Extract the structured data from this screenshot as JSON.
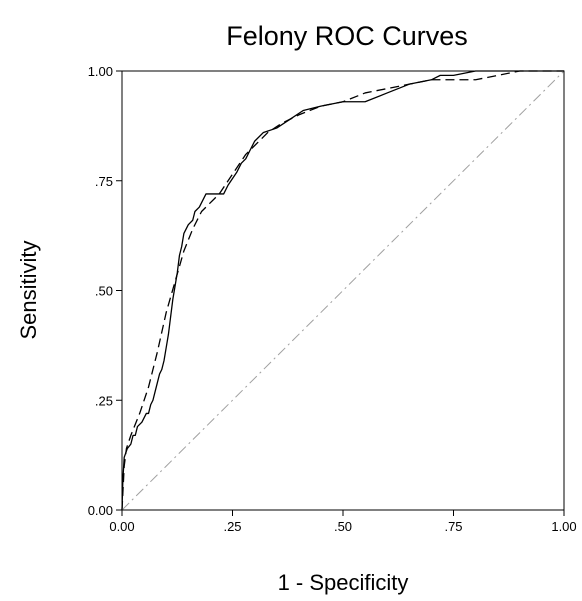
{
  "chart_data": {
    "type": "line",
    "title": "Felony ROC Curves",
    "xlabel": "1 - Specificity",
    "ylabel": "Sensitivity",
    "xlim": [
      0,
      1
    ],
    "ylim": [
      0,
      1
    ],
    "x_ticks": [
      {
        "value": 0,
        "label": "0.00"
      },
      {
        "value": 0.25,
        "label": ".25"
      },
      {
        "value": 0.5,
        "label": ".50"
      },
      {
        "value": 0.75,
        "label": ".75"
      },
      {
        "value": 1,
        "label": "1.00"
      }
    ],
    "y_ticks": [
      {
        "value": 0,
        "label": "0.00"
      },
      {
        "value": 0.25,
        "label": ".25"
      },
      {
        "value": 0.5,
        "label": ".50"
      },
      {
        "value": 0.75,
        "label": ".75"
      },
      {
        "value": 1,
        "label": "1.00"
      }
    ],
    "grid": false,
    "legend": "none",
    "series": [
      {
        "style": "solid",
        "color": "#000000",
        "points": [
          [
            0,
            0
          ],
          [
            0.002,
            0.07
          ],
          [
            0.005,
            0.12
          ],
          [
            0.012,
            0.14
          ],
          [
            0.02,
            0.15
          ],
          [
            0.025,
            0.17
          ],
          [
            0.03,
            0.17
          ],
          [
            0.035,
            0.19
          ],
          [
            0.045,
            0.2
          ],
          [
            0.05,
            0.21
          ],
          [
            0.055,
            0.22
          ],
          [
            0.06,
            0.22
          ],
          [
            0.065,
            0.24
          ],
          [
            0.07,
            0.25
          ],
          [
            0.075,
            0.27
          ],
          [
            0.08,
            0.29
          ],
          [
            0.085,
            0.31
          ],
          [
            0.09,
            0.32
          ],
          [
            0.095,
            0.34
          ],
          [
            0.1,
            0.37
          ],
          [
            0.105,
            0.4
          ],
          [
            0.11,
            0.44
          ],
          [
            0.115,
            0.48
          ],
          [
            0.12,
            0.51
          ],
          [
            0.125,
            0.54
          ],
          [
            0.13,
            0.58
          ],
          [
            0.135,
            0.6
          ],
          [
            0.14,
            0.63
          ],
          [
            0.15,
            0.65
          ],
          [
            0.16,
            0.66
          ],
          [
            0.165,
            0.68
          ],
          [
            0.175,
            0.69
          ],
          [
            0.18,
            0.7
          ],
          [
            0.19,
            0.72
          ],
          [
            0.21,
            0.72
          ],
          [
            0.23,
            0.72
          ],
          [
            0.24,
            0.74
          ],
          [
            0.26,
            0.77
          ],
          [
            0.27,
            0.79
          ],
          [
            0.28,
            0.8
          ],
          [
            0.29,
            0.82
          ],
          [
            0.3,
            0.84
          ],
          [
            0.32,
            0.86
          ],
          [
            0.35,
            0.87
          ],
          [
            0.38,
            0.89
          ],
          [
            0.41,
            0.91
          ],
          [
            0.45,
            0.92
          ],
          [
            0.5,
            0.93
          ],
          [
            0.55,
            0.93
          ],
          [
            0.6,
            0.95
          ],
          [
            0.65,
            0.97
          ],
          [
            0.7,
            0.98
          ],
          [
            0.72,
            0.99
          ],
          [
            0.75,
            0.99
          ],
          [
            0.8,
            1
          ],
          [
            0.85,
            1
          ],
          [
            0.9,
            1
          ],
          [
            1,
            1
          ]
        ]
      },
      {
        "style": "dashed",
        "color": "#000000",
        "points": [
          [
            0,
            0
          ],
          [
            0.005,
            0.1
          ],
          [
            0.01,
            0.14
          ],
          [
            0.02,
            0.17
          ],
          [
            0.04,
            0.22
          ],
          [
            0.06,
            0.28
          ],
          [
            0.08,
            0.36
          ],
          [
            0.1,
            0.45
          ],
          [
            0.12,
            0.52
          ],
          [
            0.14,
            0.59
          ],
          [
            0.16,
            0.64
          ],
          [
            0.18,
            0.68
          ],
          [
            0.2,
            0.7
          ],
          [
            0.22,
            0.72
          ],
          [
            0.24,
            0.75
          ],
          [
            0.26,
            0.78
          ],
          [
            0.28,
            0.81
          ],
          [
            0.3,
            0.83
          ],
          [
            0.33,
            0.86
          ],
          [
            0.36,
            0.88
          ],
          [
            0.4,
            0.9
          ],
          [
            0.45,
            0.92
          ],
          [
            0.5,
            0.93
          ],
          [
            0.55,
            0.95
          ],
          [
            0.6,
            0.96
          ],
          [
            0.65,
            0.97
          ],
          [
            0.7,
            0.98
          ],
          [
            0.8,
            0.98
          ],
          [
            0.85,
            0.99
          ],
          [
            0.9,
            1
          ],
          [
            1,
            1
          ]
        ]
      },
      {
        "style": "dash-dot",
        "color": "#a0a0a0",
        "points": [
          [
            0,
            0
          ],
          [
            1,
            1
          ]
        ]
      }
    ]
  }
}
